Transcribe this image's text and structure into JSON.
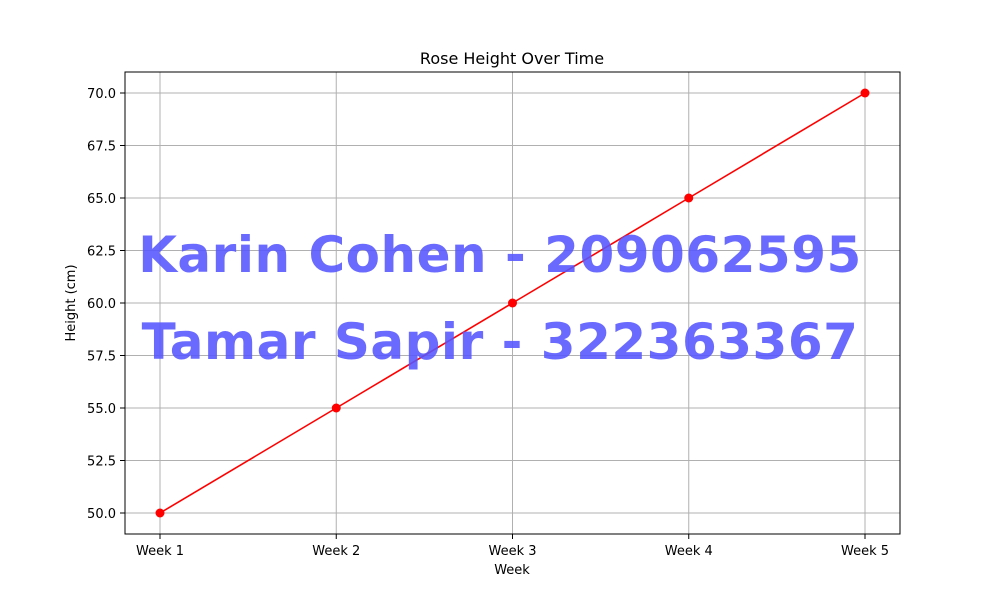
{
  "chart_data": {
    "type": "line",
    "title": "Rose Height Over Time",
    "xlabel": "Week",
    "ylabel": "Height (cm)",
    "categories": [
      "Week 1",
      "Week 2",
      "Week 3",
      "Week 4",
      "Week 5"
    ],
    "values": [
      50.0,
      55.0,
      60.0,
      65.0,
      70.0
    ],
    "ylim": [
      49.0,
      71.0
    ],
    "yticks": [
      "50.0",
      "52.5",
      "55.0",
      "57.5",
      "60.0",
      "62.5",
      "65.0",
      "67.5",
      "70.0"
    ],
    "grid": true,
    "line_color": "#ff0000",
    "marker": "circle"
  },
  "watermark": {
    "line1": "Karin Cohen - 209062595",
    "line2": "Tamar Sapir - 322363367",
    "color": "#5555ff"
  }
}
